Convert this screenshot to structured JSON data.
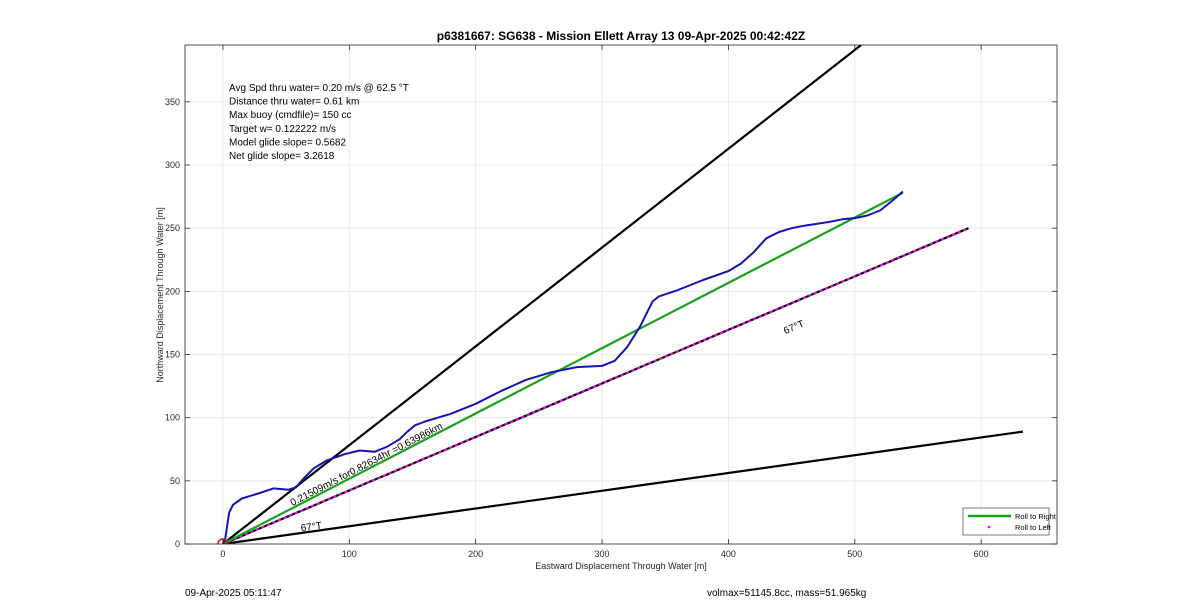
{
  "footer": {
    "timestamp": "09-Apr-2025 05:11:47",
    "vol_mass": "volmax=51145.8cc, mass=51.965kg"
  },
  "chart_data": {
    "type": "line",
    "title": "p6381667: SG638 - Mission Ellett Array 13 09-Apr-2025 00:42:42Z",
    "xlabel": "Eastward Displacement Through Water [m]",
    "ylabel": "Northward Displacement Through Water [m]",
    "xlim": [
      -30,
      660
    ],
    "ylim": [
      0,
      395
    ],
    "xticks": [
      0,
      100,
      200,
      300,
      400,
      500,
      600
    ],
    "yticks": [
      0,
      50,
      100,
      150,
      200,
      250,
      300,
      350
    ],
    "grid": true,
    "legend_position": "bottom-right",
    "colors": {
      "track": "#1414b4",
      "roll_right": "#19a319",
      "roll_left": "#ff00ff",
      "reference": "#000000",
      "start_marker": "#e01010"
    },
    "info_text": [
      "Avg Spd thru water=  0.20 m/s @  62.5 °T",
      "Distance thru water=  0.61 km",
      "Max buoy (cmdfile)= 150 cc",
      "Target w= 0.122222 m/s",
      "Model glide slope= 0.5682",
      "Net glide slope= 3.2618"
    ],
    "annotations": [
      {
        "text": "0.21509m/s for0.82634hr =0.63986km",
        "x": 55,
        "y": 30
      },
      {
        "text": "67°T",
        "x": 62,
        "y": 10
      },
      {
        "text": "67°T",
        "x": 445,
        "y": 166
      }
    ],
    "legend": [
      {
        "label": "Roll to Right",
        "color": "#19a319",
        "style": "line"
      },
      {
        "label": "Roll to Left",
        "color": "#ff00ff",
        "style": "dot"
      }
    ],
    "series": [
      {
        "name": "track",
        "x": [
          0,
          2,
          5,
          8,
          15,
          28,
          40,
          52,
          58,
          64,
          72,
          82,
          96,
          108,
          120,
          130,
          140,
          146,
          152,
          160,
          180,
          200,
          220,
          240,
          260,
          280,
          300,
          310,
          320,
          330,
          336,
          340,
          345,
          360,
          380,
          400,
          410,
          420,
          430,
          440,
          450,
          460,
          480,
          490,
          500,
          510,
          520,
          530,
          538
        ],
        "y": [
          0,
          5,
          25,
          31,
          36,
          40,
          44,
          43,
          45,
          52,
          60,
          66,
          71,
          74,
          73,
          77,
          83,
          89,
          94,
          97,
          103,
          111,
          121,
          130,
          136,
          140,
          141,
          145,
          156,
          172,
          184,
          192,
          196,
          201,
          209,
          216,
          222,
          231,
          242,
          247,
          250,
          252,
          255,
          257,
          258,
          260,
          264,
          272,
          279
        ]
      },
      {
        "name": "Roll to Right",
        "x": [
          0,
          538
        ],
        "y": [
          0,
          278
        ]
      },
      {
        "name": "Roll to Left",
        "x": [
          0,
          590
        ],
        "y": [
          0,
          250
        ]
      },
      {
        "name": "ref-steep",
        "x": [
          0,
          505
        ],
        "y": [
          0,
          395
        ]
      },
      {
        "name": "ref-shallow",
        "x": [
          0,
          633
        ],
        "y": [
          0,
          89
        ]
      }
    ]
  }
}
